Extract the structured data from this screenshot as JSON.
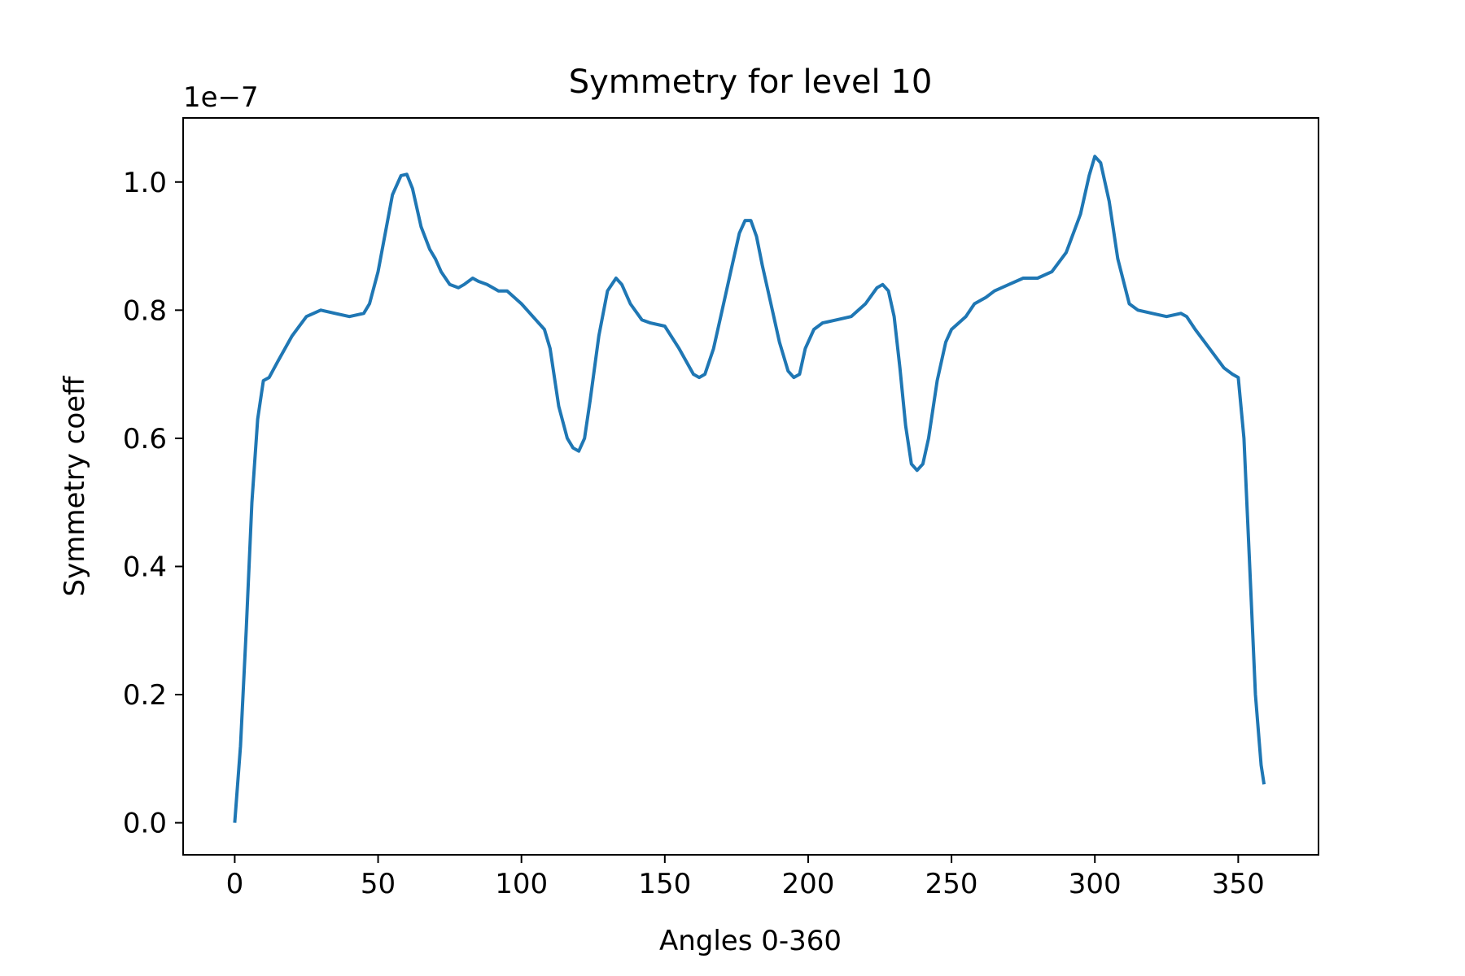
{
  "chart_data": {
    "type": "line",
    "title": "Symmetry for level 10",
    "xlabel": "Angles 0-360",
    "ylabel": "Symmetry coeff",
    "offset_label": "1e−7",
    "xlim": [
      -18,
      378
    ],
    "ylim": [
      -0.05,
      1.1
    ],
    "xticks": [
      0,
      50,
      100,
      150,
      200,
      250,
      300,
      350
    ],
    "xtick_labels": [
      "0",
      "50",
      "100",
      "150",
      "200",
      "250",
      "300",
      "350"
    ],
    "yticks": [
      0.0,
      0.2,
      0.4,
      0.6,
      0.8,
      1.0
    ],
    "ytick_labels": [
      "0.0",
      "0.2",
      "0.4",
      "0.6",
      "0.8",
      "1.0"
    ],
    "grid": false,
    "series": [
      {
        "color": "#1f77b4",
        "x": [
          0,
          2,
          4,
          6,
          8,
          10,
          12,
          15,
          20,
          25,
          30,
          35,
          40,
          45,
          47,
          50,
          55,
          58,
          60,
          62,
          65,
          68,
          70,
          72,
          75,
          78,
          80,
          83,
          85,
          88,
          90,
          92,
          95,
          100,
          105,
          108,
          110,
          113,
          116,
          118,
          120,
          122,
          124,
          127,
          130,
          133,
          135,
          138,
          142,
          145,
          150,
          155,
          160,
          162,
          164,
          167,
          170,
          173,
          176,
          178,
          180,
          182,
          184,
          187,
          190,
          193,
          195,
          197,
          199,
          202,
          205,
          210,
          215,
          220,
          224,
          226,
          228,
          230,
          232,
          234,
          236,
          238,
          240,
          242,
          245,
          248,
          250,
          255,
          258,
          262,
          265,
          270,
          275,
          280,
          285,
          290,
          295,
          298,
          300,
          302,
          305,
          308,
          312,
          315,
          320,
          325,
          330,
          332,
          335,
          340,
          345,
          348,
          350,
          352,
          354,
          356,
          358,
          359
        ],
        "y": [
          0.0,
          0.12,
          0.3,
          0.5,
          0.63,
          0.69,
          0.695,
          0.72,
          0.76,
          0.79,
          0.8,
          0.795,
          0.79,
          0.795,
          0.81,
          0.86,
          0.98,
          1.01,
          1.012,
          0.99,
          0.93,
          0.895,
          0.88,
          0.86,
          0.84,
          0.835,
          0.84,
          0.85,
          0.845,
          0.84,
          0.835,
          0.83,
          0.83,
          0.81,
          0.785,
          0.77,
          0.74,
          0.65,
          0.6,
          0.585,
          0.58,
          0.6,
          0.66,
          0.76,
          0.83,
          0.85,
          0.84,
          0.81,
          0.785,
          0.78,
          0.775,
          0.74,
          0.7,
          0.695,
          0.7,
          0.74,
          0.8,
          0.86,
          0.92,
          0.94,
          0.94,
          0.915,
          0.87,
          0.81,
          0.75,
          0.705,
          0.695,
          0.7,
          0.74,
          0.77,
          0.78,
          0.785,
          0.79,
          0.81,
          0.835,
          0.84,
          0.83,
          0.79,
          0.71,
          0.62,
          0.56,
          0.55,
          0.56,
          0.6,
          0.69,
          0.75,
          0.77,
          0.79,
          0.81,
          0.82,
          0.83,
          0.84,
          0.85,
          0.85,
          0.86,
          0.89,
          0.95,
          1.01,
          1.04,
          1.03,
          0.97,
          0.88,
          0.81,
          0.8,
          0.795,
          0.79,
          0.795,
          0.79,
          0.77,
          0.74,
          0.71,
          0.7,
          0.695,
          0.6,
          0.4,
          0.2,
          0.09,
          0.06
        ]
      }
    ]
  }
}
